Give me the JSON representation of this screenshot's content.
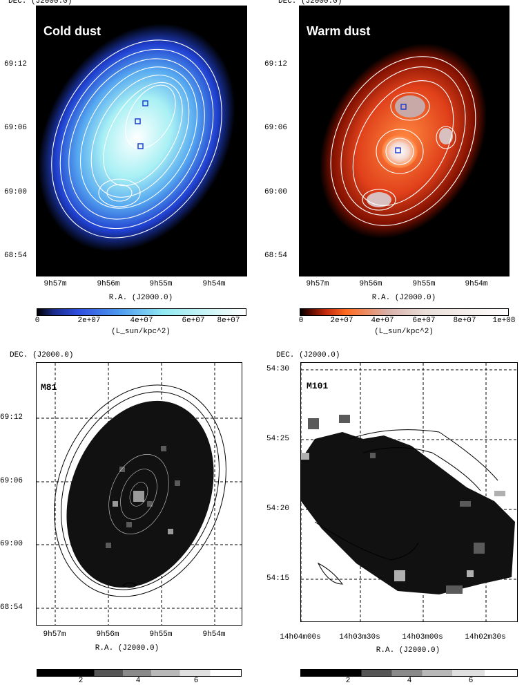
{
  "panels": {
    "tl": {
      "dec_label": "DEC. (J2000.0)",
      "title": "Cold dust",
      "y_ticks": [
        "69:12",
        "69:06",
        "69:00",
        "68:54"
      ],
      "x_ticks": [
        "9h57m",
        "9h56m",
        "9h55m",
        "9h54m"
      ],
      "x_label": "R.A. (J2000.0)",
      "cbar_ticks": [
        "0",
        "2e+07",
        "4e+07",
        "6e+07",
        "8e+07"
      ],
      "cbar_unit": "(L_sun/kpc^2)"
    },
    "tr": {
      "dec_label": "DEC. (J2000.0)",
      "title": "Warm dust",
      "y_ticks": [
        "69:12",
        "69:06",
        "69:00",
        "68:54"
      ],
      "x_ticks": [
        "9h57m",
        "9h56m",
        "9h55m",
        "9h54m"
      ],
      "x_label": "R.A. (J2000.0)",
      "cbar_ticks": [
        "0",
        "2e+07",
        "4e+07",
        "6e+07",
        "8e+07",
        "1e+08"
      ],
      "cbar_unit": "(L_sun/kpc^2)"
    },
    "bl": {
      "dec_label": "DEC. (J2000.0)",
      "title": "M81",
      "y_ticks": [
        "69:12",
        "69:06",
        "69:00",
        "68:54"
      ],
      "x_ticks": [
        "9h57m",
        "9h56m",
        "9h55m",
        "9h54m"
      ],
      "x_label": "R.A. (J2000.0)",
      "cbar_ticks": [
        "2",
        "4",
        "6"
      ]
    },
    "br": {
      "dec_label": "DEC. (J2000.0)",
      "title": "M101",
      "y_ticks": [
        "54:30",
        "54:25",
        "54:20",
        "54:15"
      ],
      "x_ticks": [
        "14h04m00s",
        "14h03m30s",
        "14h03m00s",
        "14h02m30s"
      ],
      "x_label": "R.A. (J2000.0)",
      "cbar_ticks": [
        "2",
        "4",
        "6"
      ]
    }
  },
  "colors": {
    "cold_dust_map": [
      "#000000",
      "#1a2a8a",
      "#2f4fe0",
      "#4f9cf0",
      "#8fe8f2",
      "#ffffff"
    ],
    "warm_dust_map": [
      "#000000",
      "#5a0a00",
      "#c0280c",
      "#ff6a20",
      "#d8b0a8",
      "#ffffff"
    ],
    "ratio_map": [
      "#000000",
      "#333333",
      "#6a6a6a",
      "#a8a8a8",
      "#d8d8d8",
      "#ffffff"
    ]
  }
}
